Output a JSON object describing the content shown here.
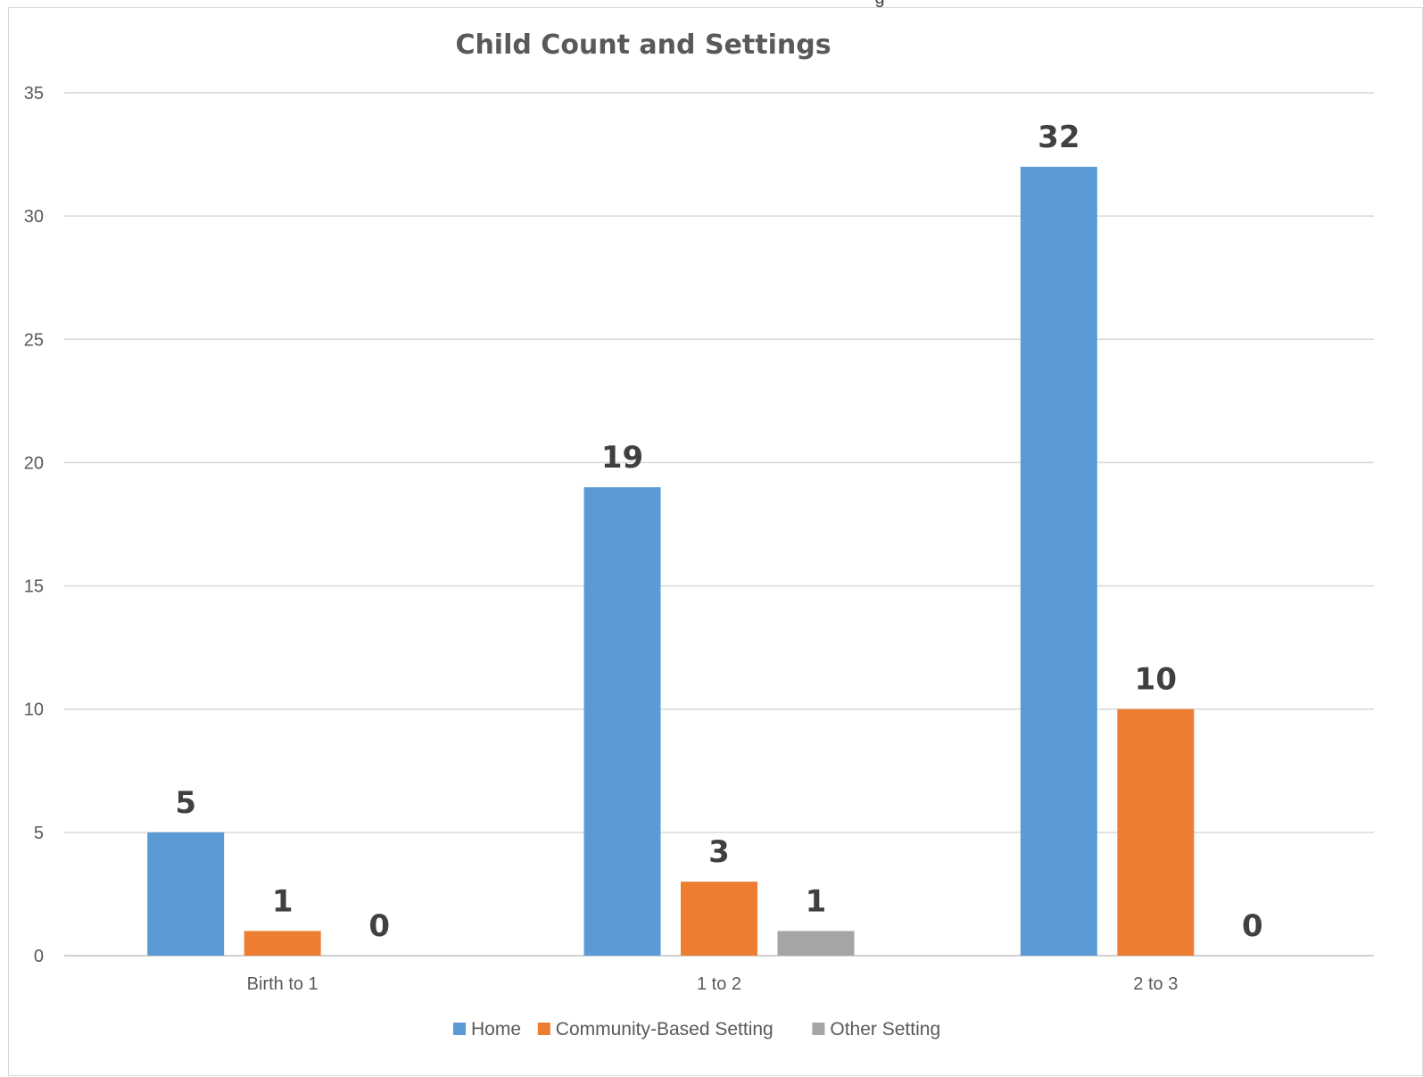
{
  "top_cut_text": "g",
  "chart_data": {
    "type": "bar",
    "title": "Child Count and Settings",
    "xlabel": "",
    "ylabel": "",
    "categories": [
      "Birth to 1",
      "1 to 2",
      "2 to 3"
    ],
    "series": [
      {
        "name": "Home",
        "color": "#5B9BD5",
        "values": [
          5,
          19,
          32
        ]
      },
      {
        "name": "Community-Based Setting",
        "color": "#ED7D31",
        "values": [
          1,
          3,
          10
        ]
      },
      {
        "name": "Other Setting",
        "color": "#A5A5A5",
        "values": [
          0,
          1,
          0
        ]
      }
    ],
    "ylim": [
      0,
      35
    ],
    "yticks": [
      "0",
      "5",
      "10",
      "15",
      "20",
      "25",
      "30",
      "35"
    ],
    "grid": true,
    "legend_position": "bottom",
    "data_labels": true
  }
}
